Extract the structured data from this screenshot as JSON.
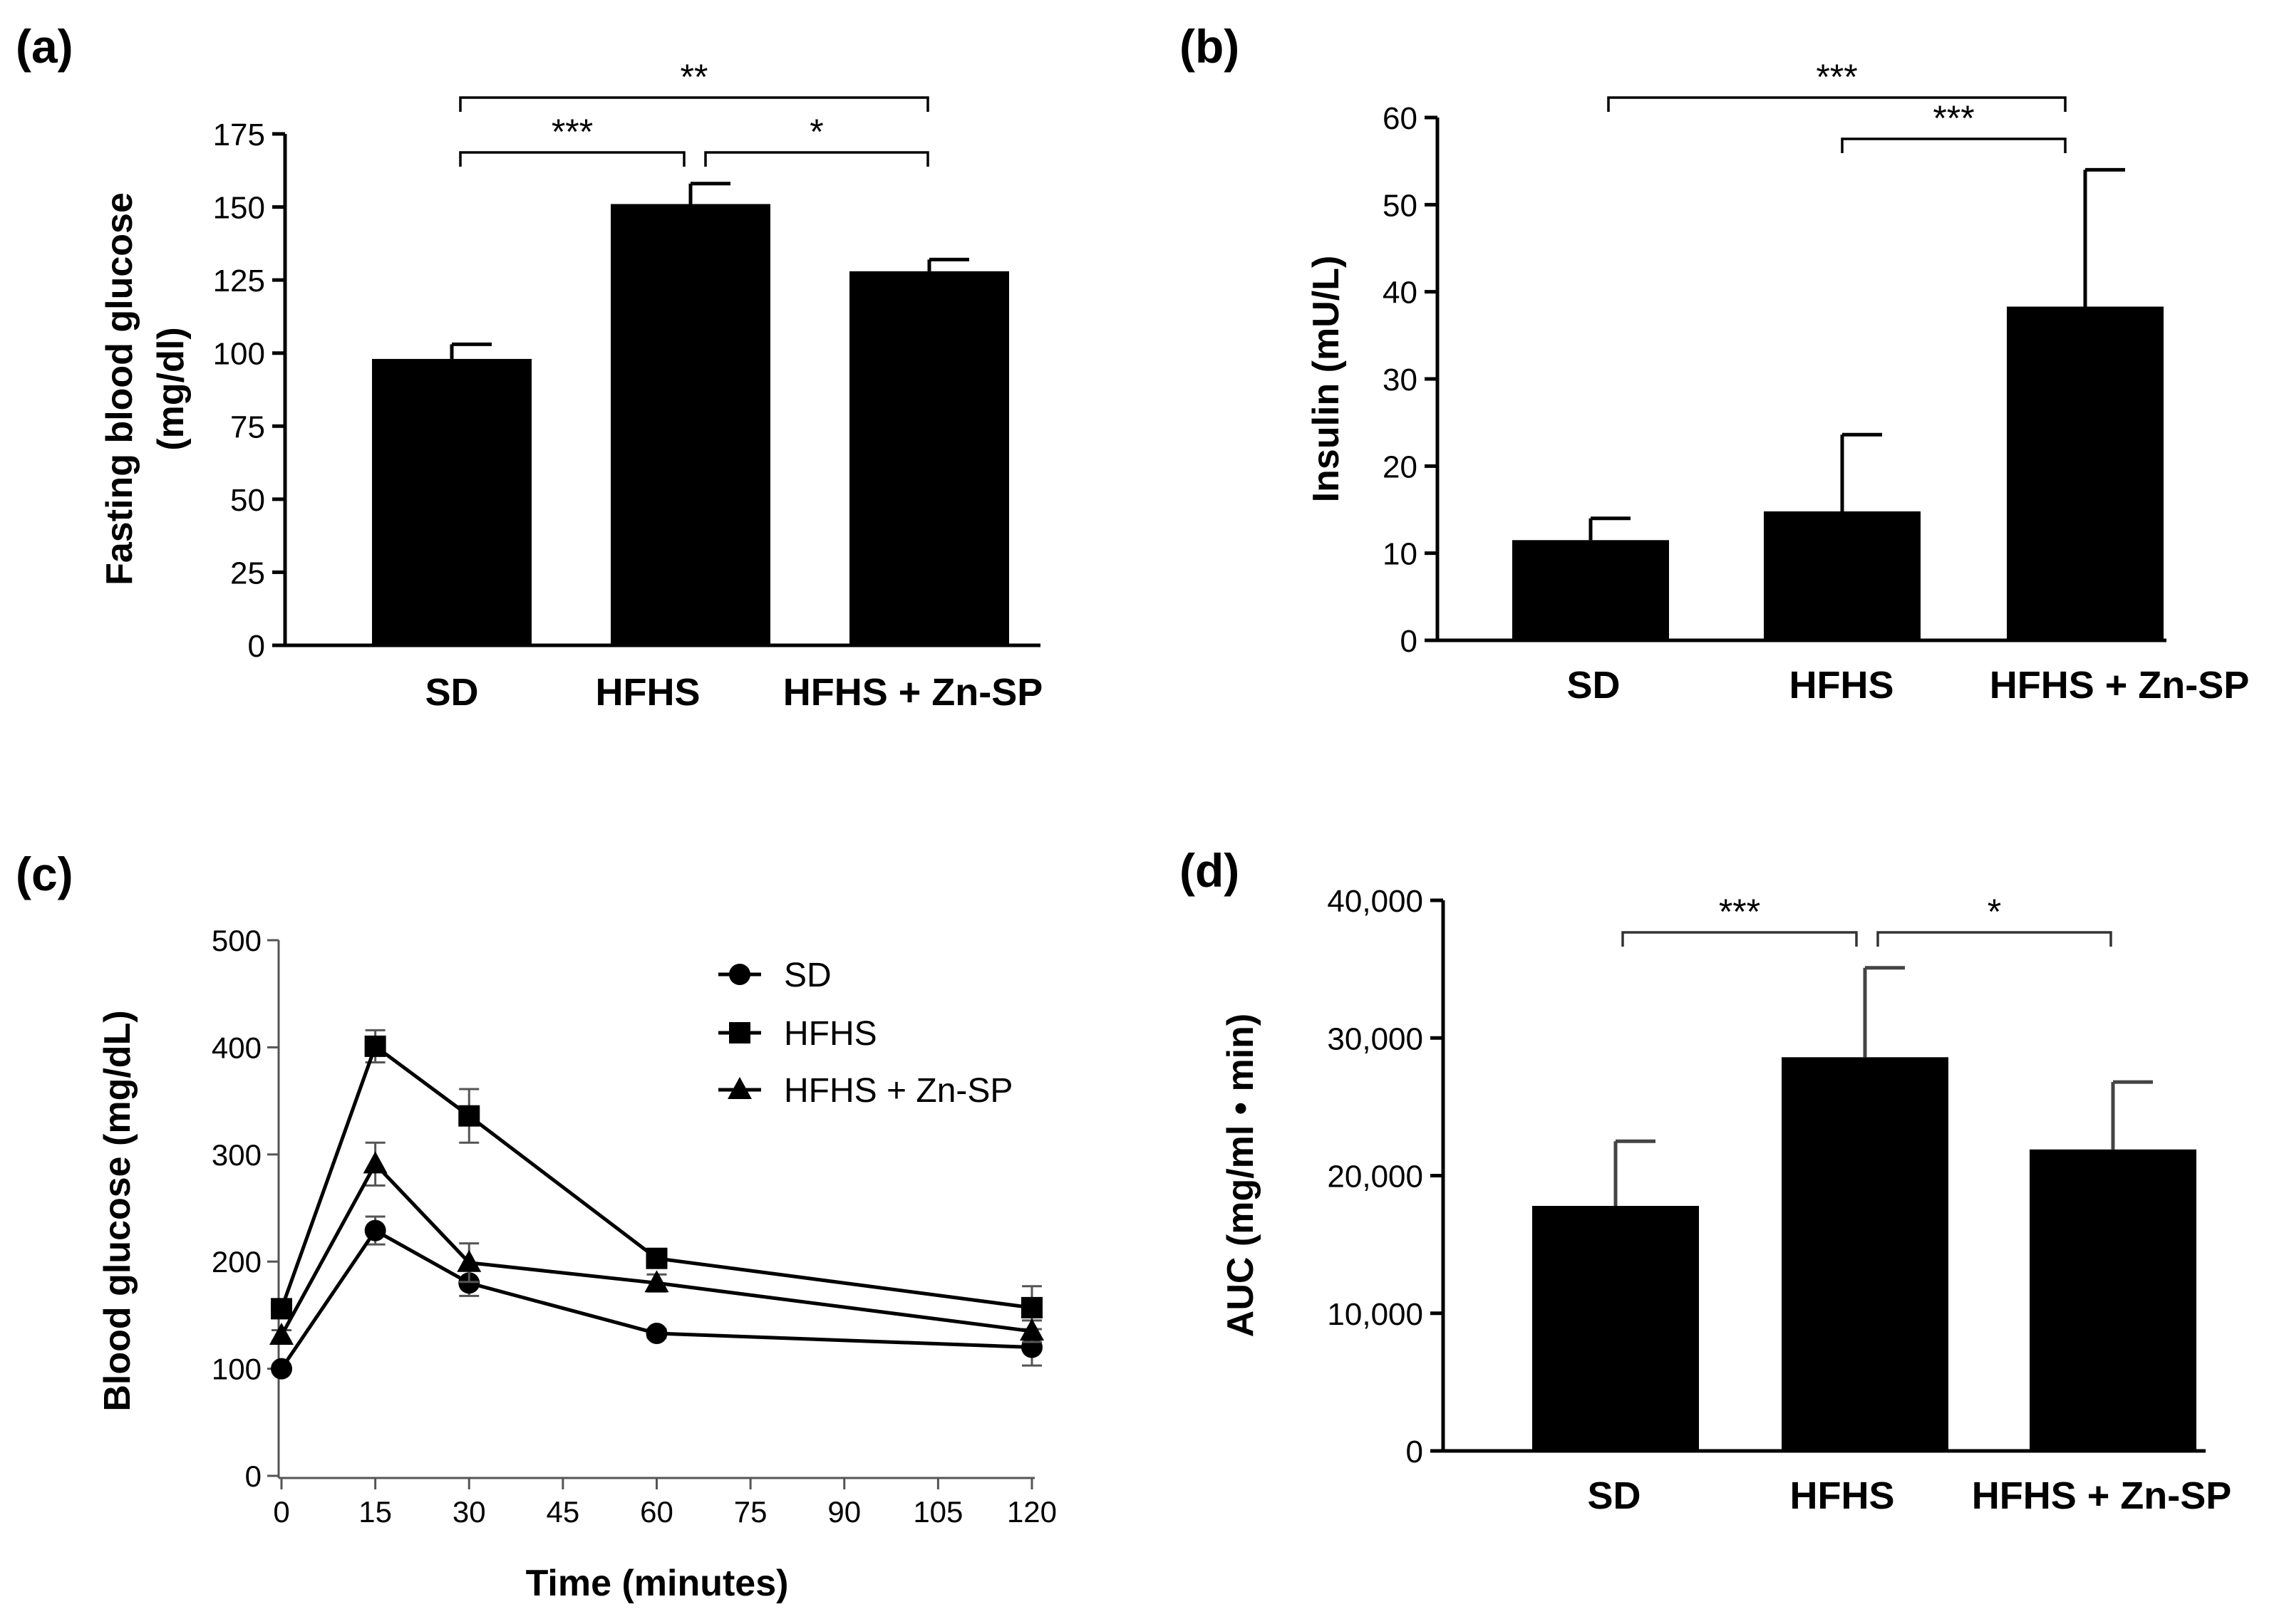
{
  "chart_data": [
    {
      "id": "a",
      "panel_label": "(a)",
      "type": "bar",
      "categories": [
        "SD",
        "HFHS",
        "HFHS + Zn-SP"
      ],
      "values": [
        98,
        151,
        128
      ],
      "errors": [
        5,
        7,
        4
      ],
      "ylabel_line1": "Fasting blood glucose",
      "ylabel_line2": "(mg/dl)",
      "ylim": [
        0,
        175
      ],
      "yticks": [
        0,
        25,
        50,
        75,
        100,
        125,
        150,
        175
      ],
      "ytick_labels": [
        "0",
        "25",
        "50",
        "75",
        "100",
        "125",
        "150",
        "175"
      ],
      "significance": [
        {
          "from": 0,
          "to": 1,
          "label": "***"
        },
        {
          "from": 1,
          "to": 2,
          "label": "*"
        },
        {
          "from": 0,
          "to": 2,
          "label": "**"
        }
      ]
    },
    {
      "id": "b",
      "panel_label": "(b)",
      "type": "bar",
      "categories": [
        "SD",
        "HFHS",
        "HFHS + Zn-SP"
      ],
      "values": [
        11.5,
        14.8,
        38.3
      ],
      "errors": [
        2.5,
        8.8,
        15.7
      ],
      "ylabel": "Insulin (mU/L)",
      "ylim": [
        0,
        60
      ],
      "yticks": [
        0,
        10,
        20,
        30,
        40,
        50,
        60
      ],
      "ytick_labels": [
        "0",
        "10",
        "20",
        "30",
        "40",
        "50",
        "60"
      ],
      "significance": [
        {
          "from": 0,
          "to": 2,
          "label": "***"
        },
        {
          "from": 1,
          "to": 2,
          "label": "***"
        }
      ]
    },
    {
      "id": "c",
      "panel_label": "(c)",
      "type": "line",
      "xlabel": "Time (minutes)",
      "ylabel": "Blood glucose (mg/dL)",
      "x": [
        0,
        15,
        30,
        60,
        120
      ],
      "xlim": [
        0,
        120
      ],
      "ylim": [
        0,
        500
      ],
      "xticks": [
        0,
        15,
        30,
        45,
        60,
        75,
        90,
        105,
        120
      ],
      "xtick_labels": [
        "0",
        "15",
        "30",
        "45",
        "60",
        "75",
        "90",
        "105",
        "120"
      ],
      "yticks": [
        0,
        100,
        200,
        300,
        400,
        500
      ],
      "ytick_labels": [
        "0",
        "100",
        "200",
        "300",
        "400",
        "500"
      ],
      "series": [
        {
          "name": "SD",
          "marker": "circle",
          "values": [
            100,
            229,
            180,
            133,
            120
          ],
          "errors": [
            3,
            13,
            12,
            4,
            17
          ]
        },
        {
          "name": "HFHS",
          "marker": "square",
          "values": [
            156,
            401,
            336,
            203,
            157
          ],
          "errors": [
            6,
            15,
            25,
            6,
            20
          ]
        },
        {
          "name": "HFHS + Zn-SP",
          "marker": "triangle",
          "values": [
            131,
            291,
            199,
            180,
            135
          ],
          "errors": [
            5,
            20,
            18,
            8,
            10
          ]
        }
      ],
      "legend_position": "top-right"
    },
    {
      "id": "d",
      "panel_label": "(d)",
      "type": "bar",
      "categories": [
        "SD",
        "HFHS",
        "HFHS + Zn-SP"
      ],
      "values": [
        17800,
        28600,
        21900
      ],
      "errors": [
        4700,
        6500,
        4900
      ],
      "ylabel": "AUC (mg/ml • min)",
      "ylim": [
        0,
        40000
      ],
      "yticks": [
        0,
        10000,
        20000,
        30000,
        40000
      ],
      "ytick_labels": [
        "0",
        "10,000",
        "20,000",
        "30,000",
        "40,000"
      ],
      "significance": [
        {
          "from": 0,
          "to": 1,
          "label": "***"
        },
        {
          "from": 1,
          "to": 2,
          "label": "*"
        }
      ]
    }
  ]
}
